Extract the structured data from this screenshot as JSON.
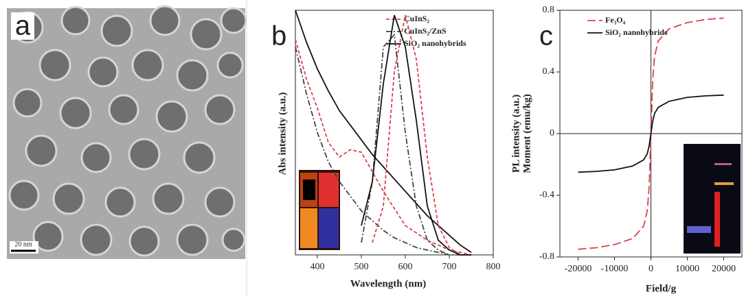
{
  "panels": {
    "a": {
      "label": "a",
      "scale_bar": "20 nm"
    }
  },
  "chart_data": [
    {
      "type": "line",
      "label": "b",
      "x_label": "Wavelength (nm)",
      "y_label": "Abs intensity (a.u.)",
      "y2_label": "PL intensity (a.u.)",
      "xlim": [
        350,
        800
      ],
      "xticks": [
        400,
        500,
        600,
        700,
        800
      ],
      "ylim": [
        0,
        1
      ],
      "x": [
        350,
        375,
        400,
        425,
        450,
        475,
        500,
        525,
        550,
        575,
        600,
        625,
        650,
        675,
        700,
        725,
        750
      ],
      "series": [
        {
          "name": "CuInS₂",
          "color": "#d9424a",
          "style": "dashed",
          "values": [
            0.88,
            0.72,
            0.6,
            0.46,
            0.4,
            0.43,
            0.42,
            0.34,
            0.26,
            0.19,
            0.12,
            0.09,
            0.06,
            0.04,
            0.02,
            0.01,
            0
          ]
        },
        {
          "name": "CuInS₂/ZnS",
          "color": "#444",
          "style": "dashdot",
          "values": [
            0.85,
            0.66,
            0.5,
            0.38,
            0.3,
            0.24,
            0.18,
            0.14,
            0.1,
            0.07,
            0.05,
            0.03,
            0.02,
            0.01,
            0,
            0,
            0
          ]
        },
        {
          "name": "SiO₂ nanohybrids",
          "color": "#111",
          "style": "solid",
          "values": [
            1.0,
            0.87,
            0.76,
            0.67,
            0.59,
            0.53,
            0.47,
            0.41,
            0.36,
            0.31,
            0.26,
            0.21,
            0.16,
            0.12,
            0.08,
            0.04,
            0.01
          ]
        },
        {
          "color": "#d9424a",
          "style": "dashed",
          "values": [
            null,
            null,
            null,
            null,
            null,
            null,
            null,
            0.05,
            0.2,
            0.75,
            0.98,
            0.8,
            0.4,
            0.12,
            0.03,
            0,
            0
          ]
        },
        {
          "color": "#444",
          "style": "dashdot",
          "values": [
            null,
            null,
            null,
            null,
            null,
            null,
            0.05,
            0.3,
            0.85,
            0.9,
            0.5,
            0.2,
            0.06,
            0.02,
            0,
            null,
            null
          ]
        },
        {
          "color": "#111",
          "style": "solid",
          "values": [
            null,
            null,
            null,
            null,
            null,
            null,
            0.12,
            0.3,
            0.7,
            0.98,
            0.85,
            0.55,
            0.2,
            0.06,
            0.02,
            0,
            0
          ]
        }
      ]
    },
    {
      "type": "line",
      "label": "c",
      "x_label": "Field/g",
      "y_label": "Moment (emu/kg)",
      "xlim": [
        -25000,
        25000
      ],
      "xticks": [
        -20000,
        -10000,
        0,
        10000,
        20000
      ],
      "ylim": [
        -0.8,
        0.8
      ],
      "yticks": [
        -0.8,
        -0.4,
        0,
        0.4,
        0.8
      ],
      "x": [
        -20000,
        -15000,
        -10000,
        -5000,
        -2000,
        -1000,
        -500,
        0,
        500,
        1000,
        2000,
        5000,
        10000,
        15000,
        20000
      ],
      "series": [
        {
          "name": "Fe₃O₄",
          "color": "#d9424a",
          "style": "longdash",
          "values": [
            -0.75,
            -0.74,
            -0.72,
            -0.68,
            -0.6,
            -0.5,
            -0.35,
            0,
            0.35,
            0.5,
            0.6,
            0.68,
            0.72,
            0.74,
            0.75
          ]
        },
        {
          "name": "SiO₂ nanohybrids",
          "color": "#111",
          "style": "solid",
          "values": [
            -0.25,
            -0.245,
            -0.235,
            -0.21,
            -0.17,
            -0.13,
            -0.08,
            0,
            0.08,
            0.13,
            0.17,
            0.21,
            0.235,
            0.245,
            0.25
          ]
        }
      ]
    }
  ]
}
